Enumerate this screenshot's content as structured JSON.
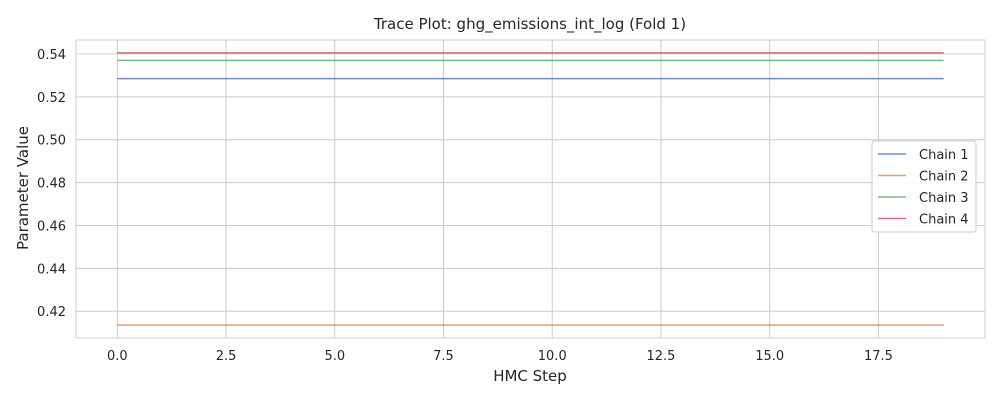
{
  "chart_data": {
    "type": "line",
    "title": "Trace Plot: ghg_emissions_int_log (Fold 1)",
    "xlabel": "HMC Step",
    "ylabel": "Parameter Value",
    "xlim": [
      -0.95,
      19.95
    ],
    "ylim": [
      0.4075,
      0.5465
    ],
    "xticks": [
      0.0,
      2.5,
      5.0,
      7.5,
      10.0,
      12.5,
      15.0,
      17.5
    ],
    "xtick_labels": [
      "0.0",
      "2.5",
      "5.0",
      "7.5",
      "10.0",
      "12.5",
      "15.0",
      "17.5"
    ],
    "yticks": [
      0.42,
      0.44,
      0.46,
      0.48,
      0.5,
      0.52,
      0.54
    ],
    "ytick_labels": [
      "0.42",
      "0.44",
      "0.46",
      "0.48",
      "0.50",
      "0.52",
      "0.54"
    ],
    "grid": true,
    "legend_position": "right",
    "x": [
      0,
      1,
      2,
      3,
      4,
      5,
      6,
      7,
      8,
      9,
      10,
      11,
      12,
      13,
      14,
      15,
      16,
      17,
      18,
      19
    ],
    "series": [
      {
        "name": "Chain 1",
        "color": "#4c72b0",
        "values": [
          0.5285,
          0.5285,
          0.5285,
          0.5285,
          0.5285,
          0.5285,
          0.5285,
          0.5285,
          0.5285,
          0.5285,
          0.5285,
          0.5285,
          0.5285,
          0.5285,
          0.5285,
          0.5285,
          0.5285,
          0.5285,
          0.5285,
          0.5285
        ]
      },
      {
        "name": "Chain 2",
        "color": "#dd8452",
        "values": [
          0.4135,
          0.4135,
          0.4135,
          0.4135,
          0.4135,
          0.4135,
          0.4135,
          0.4135,
          0.4135,
          0.4135,
          0.4135,
          0.4135,
          0.4135,
          0.4135,
          0.4135,
          0.4135,
          0.4135,
          0.4135,
          0.4135,
          0.4135
        ]
      },
      {
        "name": "Chain 3",
        "color": "#55a868",
        "values": [
          0.537,
          0.537,
          0.537,
          0.537,
          0.537,
          0.537,
          0.537,
          0.537,
          0.537,
          0.537,
          0.537,
          0.537,
          0.537,
          0.537,
          0.537,
          0.537,
          0.537,
          0.537,
          0.537,
          0.537
        ]
      },
      {
        "name": "Chain 4",
        "color": "#c44e52",
        "values": [
          0.5405,
          0.5405,
          0.5405,
          0.5405,
          0.5405,
          0.5405,
          0.5405,
          0.5405,
          0.5405,
          0.5405,
          0.5405,
          0.5405,
          0.5405,
          0.5405,
          0.5405,
          0.5405,
          0.5405,
          0.5405,
          0.5405,
          0.5405
        ]
      }
    ]
  }
}
